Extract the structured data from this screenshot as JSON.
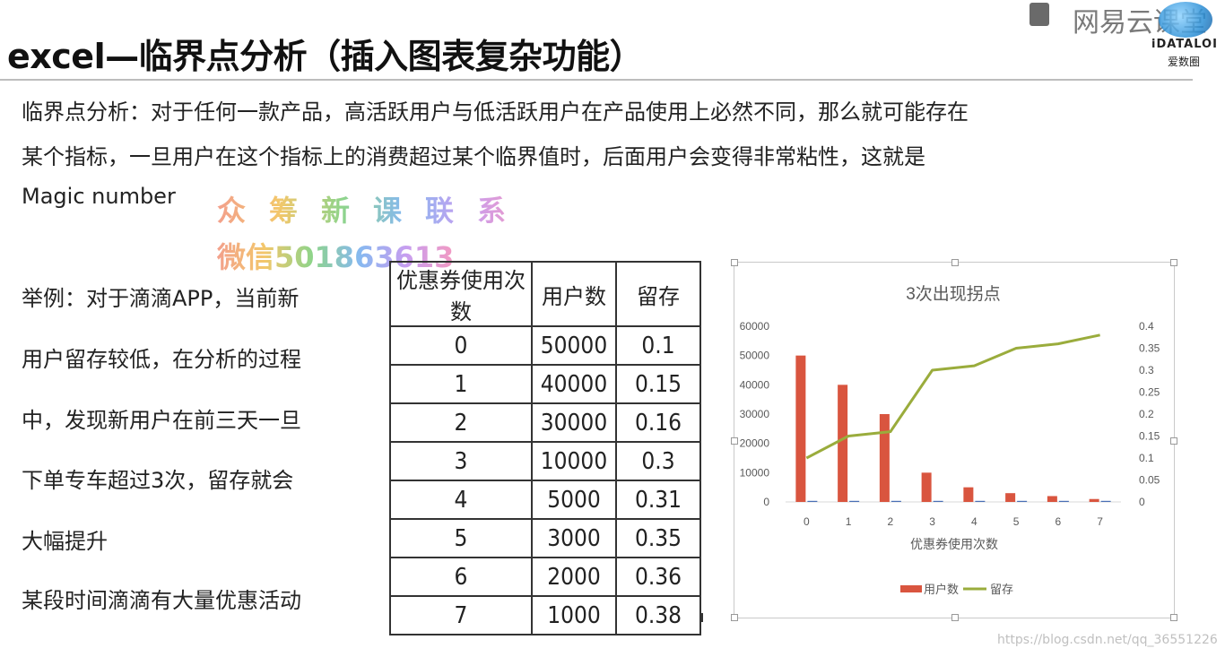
{
  "header": {
    "title": "excel—临界点分析（插入图表复杂功能）",
    "brand_text": "网易云课堂",
    "brand_logo_text": "iDATALOI",
    "brand_logo_sub": "爱数圈"
  },
  "intro": {
    "line1": "临界点分析：对于任何一款产品，高活跃用户与低活跃用户在产品使用上必然不同，那么就可能存在",
    "line2": "某个指标，一旦用户在这个指标上的消费超过某个临界值时，后面用户会变得非常粘性，这就是",
    "line3": "Magic number"
  },
  "watermark": {
    "line1": "众筹新课联系",
    "line2": "微信501863613"
  },
  "example": {
    "lines": [
      "举例：对于滴滴APP，当前新",
      "用户留存较低，在分析的过程",
      "中，发现新用户在前三天一旦",
      "下单专车超过3次，留存就会",
      "大幅提升",
      "某段时间滴滴有大量优惠活动"
    ]
  },
  "table": {
    "headers": [
      "优惠券使用次数",
      "用户数",
      "留存"
    ],
    "rows": [
      [
        "0",
        "50000",
        "0.1"
      ],
      [
        "1",
        "40000",
        "0.15"
      ],
      [
        "2",
        "30000",
        "0.16"
      ],
      [
        "3",
        "10000",
        "0.3"
      ],
      [
        "4",
        "5000",
        "0.31"
      ],
      [
        "5",
        "3000",
        "0.35"
      ],
      [
        "6",
        "2000",
        "0.36"
      ],
      [
        "7",
        "1000",
        "0.38"
      ]
    ]
  },
  "chart_data": {
    "type": "bar",
    "title": "3次出现拐点",
    "xlabel": "优惠券使用次数",
    "categories": [
      "0",
      "1",
      "2",
      "3",
      "4",
      "5",
      "6",
      "7"
    ],
    "series": [
      {
        "name": "用户数",
        "type": "bar",
        "axis": "left",
        "color": "#d9553f",
        "values": [
          50000,
          40000,
          30000,
          10000,
          5000,
          3000,
          2000,
          1000
        ]
      },
      {
        "name": "",
        "type": "bar",
        "axis": "right",
        "color": "#4a6fb5",
        "values": [
          0.1,
          0.15,
          0.16,
          0.3,
          0.31,
          0.35,
          0.36,
          0.38
        ]
      },
      {
        "name": "留存",
        "type": "line",
        "axis": "right",
        "color": "#9aac3c",
        "values": [
          0.1,
          0.15,
          0.16,
          0.3,
          0.31,
          0.35,
          0.36,
          0.38
        ]
      }
    ],
    "y_left": {
      "min": 0,
      "max": 60000,
      "ticks": [
        "0",
        "10000",
        "20000",
        "30000",
        "40000",
        "50000",
        "60000"
      ]
    },
    "y_right": {
      "min": 0,
      "max": 0.4,
      "ticks": [
        "0",
        "0.05",
        "0.1",
        "0.15",
        "0.2",
        "0.25",
        "0.3",
        "0.35",
        "0.4"
      ]
    },
    "grid": false,
    "legend_position": "bottom"
  },
  "footer": {
    "url": "https://blog.csdn.net/qq_36551226"
  }
}
